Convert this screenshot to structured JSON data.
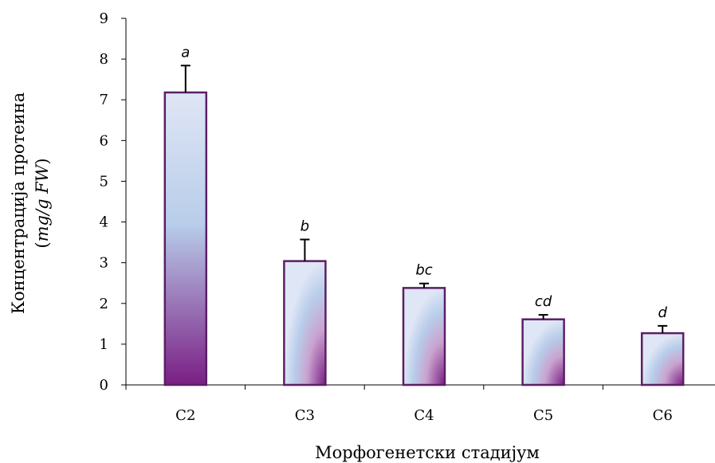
{
  "chart_data": {
    "type": "bar",
    "categories": [
      "C2",
      "C3",
      "C4",
      "C5",
      "C6"
    ],
    "values": [
      7.18,
      3.04,
      2.38,
      1.61,
      1.27
    ],
    "error_upper": [
      7.84,
      3.57,
      2.49,
      1.72,
      1.45
    ],
    "significance_labels": [
      "a",
      "b",
      "bc",
      "cd",
      "d"
    ],
    "title": "",
    "xlabel": "Морфогенетски стадијум",
    "ylabel_line1": "Концентрација протеина",
    "ylabel_line2_open": "(",
    "ylabel_line2_unit": "mg/g FW",
    "ylabel_line2_close": ")",
    "ylim": [
      0,
      9
    ],
    "yticks": [
      "0",
      "1",
      "2",
      "3",
      "4",
      "5",
      "6",
      "7",
      "8",
      "9"
    ],
    "grid": false,
    "legend": "none",
    "colors": {
      "bar_border": "#5b1f66",
      "gradient_top": "#dfe6f5",
      "gradient_mid": "#b8cdea",
      "gradient_bottom": "#7a1e84",
      "axis": "#000000"
    }
  }
}
